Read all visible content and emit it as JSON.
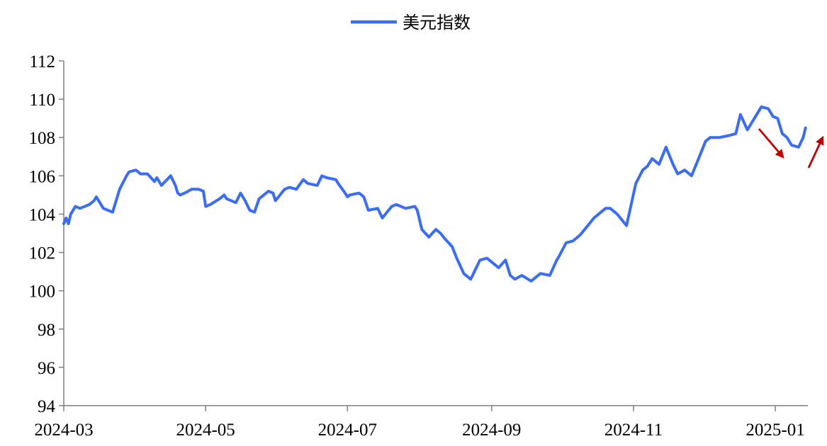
{
  "chart_data": {
    "type": "line",
    "title": "",
    "xlabel": "",
    "ylabel": "",
    "ylim": [
      94,
      112
    ],
    "xlim": [
      "2024-03-01",
      "2025-01-15"
    ],
    "y_ticks": [
      "94",
      "96",
      "98",
      "100",
      "102",
      "104",
      "106",
      "108",
      "110",
      "112"
    ],
    "x_ticks": [
      {
        "date": "2024-03-01",
        "label": "2024-03"
      },
      {
        "date": "2024-05-01",
        "label": "2024-05"
      },
      {
        "date": "2024-07-01",
        "label": "2024-07"
      },
      {
        "date": "2024-09-01",
        "label": "2024-09"
      },
      {
        "date": "2024-11-01",
        "label": "2024-11"
      },
      {
        "date": "2025-01-01",
        "label": "2025-01"
      }
    ],
    "grid": false,
    "legend": {
      "position": "top-center"
    },
    "colors": {
      "series": "#3a6cf4",
      "arrow": "#c00000",
      "axis": "#7f7f7f"
    },
    "series": [
      {
        "name": "美元指数",
        "x": [
          "2024-03-01",
          "2024-03-02",
          "2024-03-03",
          "2024-03-04",
          "2024-03-06",
          "2024-03-08",
          "2024-03-12",
          "2024-03-14",
          "2024-03-15",
          "2024-03-18",
          "2024-03-20",
          "2024-03-22",
          "2024-03-25",
          "2024-03-28",
          "2024-03-29",
          "2024-04-01",
          "2024-04-03",
          "2024-04-06",
          "2024-04-09",
          "2024-04-10",
          "2024-04-12",
          "2024-04-16",
          "2024-04-18",
          "2024-04-19",
          "2024-04-20",
          "2024-04-22",
          "2024-04-25",
          "2024-04-28",
          "2024-04-30",
          "2024-05-01",
          "2024-05-03",
          "2024-05-07",
          "2024-05-09",
          "2024-05-10",
          "2024-05-14",
          "2024-05-16",
          "2024-05-18",
          "2024-05-20",
          "2024-05-22",
          "2024-05-24",
          "2024-05-26",
          "2024-05-28",
          "2024-05-30",
          "2024-05-31",
          "2024-06-04",
          "2024-06-06",
          "2024-06-09",
          "2024-06-12",
          "2024-06-14",
          "2024-06-18",
          "2024-06-20",
          "2024-06-22",
          "2024-06-26",
          "2024-06-27",
          "2024-06-30",
          "2024-07-01",
          "2024-07-02",
          "2024-07-06",
          "2024-07-08",
          "2024-07-10",
          "2024-07-14",
          "2024-07-16",
          "2024-07-20",
          "2024-07-22",
          "2024-07-26",
          "2024-07-30",
          "2024-07-31",
          "2024-08-02",
          "2024-08-05",
          "2024-08-08",
          "2024-08-10",
          "2024-08-12",
          "2024-08-15",
          "2024-08-17",
          "2024-08-20",
          "2024-08-23",
          "2024-08-27",
          "2024-08-30",
          "2024-09-04",
          "2024-09-07",
          "2024-09-09",
          "2024-09-11",
          "2024-09-14",
          "2024-09-18",
          "2024-09-22",
          "2024-09-26",
          "2024-09-29",
          "2024-09-30",
          "2024-10-03",
          "2024-10-06",
          "2024-10-09",
          "2024-10-11",
          "2024-10-13",
          "2024-10-15",
          "2024-10-18",
          "2024-10-20",
          "2024-10-22",
          "2024-10-25",
          "2024-10-29",
          "2024-11-02",
          "2024-11-05",
          "2024-11-07",
          "2024-11-09",
          "2024-11-12",
          "2024-11-15",
          "2024-11-18",
          "2024-11-20",
          "2024-11-23",
          "2024-11-26",
          "2024-11-29",
          "2024-12-02",
          "2024-12-04",
          "2024-12-08",
          "2024-12-12",
          "2024-12-15",
          "2024-12-17",
          "2024-12-20",
          "2024-12-23",
          "2024-12-26",
          "2024-12-29",
          "2024-12-31",
          "2025-01-02",
          "2025-01-04",
          "2025-01-06",
          "2025-01-08",
          "2025-01-11",
          "2025-01-13",
          "2025-01-14"
        ],
        "values": [
          103.5,
          103.8,
          103.5,
          104.0,
          104.4,
          104.3,
          104.5,
          104.7,
          104.9,
          104.3,
          104.2,
          104.1,
          105.3,
          106.0,
          106.2,
          106.3,
          106.1,
          106.1,
          105.7,
          105.9,
          105.5,
          106.0,
          105.5,
          105.1,
          105.0,
          105.1,
          105.3,
          105.3,
          105.2,
          104.4,
          104.5,
          104.8,
          105.0,
          104.8,
          104.6,
          105.1,
          104.7,
          104.2,
          104.1,
          104.8,
          105.0,
          105.2,
          105.1,
          104.7,
          105.3,
          105.4,
          105.3,
          105.8,
          105.6,
          105.5,
          106.0,
          105.9,
          105.8,
          105.6,
          105.1,
          104.9,
          105.0,
          105.1,
          104.9,
          104.2,
          104.3,
          103.8,
          104.4,
          104.5,
          104.3,
          104.4,
          104.2,
          103.2,
          102.8,
          103.2,
          103.0,
          102.7,
          102.3,
          101.7,
          100.9,
          100.6,
          101.6,
          101.7,
          101.2,
          101.6,
          100.8,
          100.6,
          100.8,
          100.5,
          100.9,
          100.8,
          101.6,
          101.8,
          102.5,
          102.6,
          102.9,
          103.2,
          103.5,
          103.8,
          104.1,
          104.3,
          104.3,
          104.0,
          103.4,
          105.6,
          106.3,
          106.5,
          106.9,
          106.6,
          107.5,
          106.6,
          106.1,
          106.3,
          106.0,
          106.9,
          107.8,
          108.0,
          108.0,
          108.1,
          108.2,
          109.2,
          108.4,
          109.0,
          109.6,
          109.5,
          109.1,
          109.0,
          108.2,
          108.0,
          107.6,
          107.5,
          108.0,
          108.5
        ]
      }
    ],
    "annotations": [
      {
        "type": "arrow",
        "direction": "down",
        "color": "#c00000"
      },
      {
        "type": "arrow",
        "direction": "up",
        "color": "#c00000"
      }
    ]
  }
}
